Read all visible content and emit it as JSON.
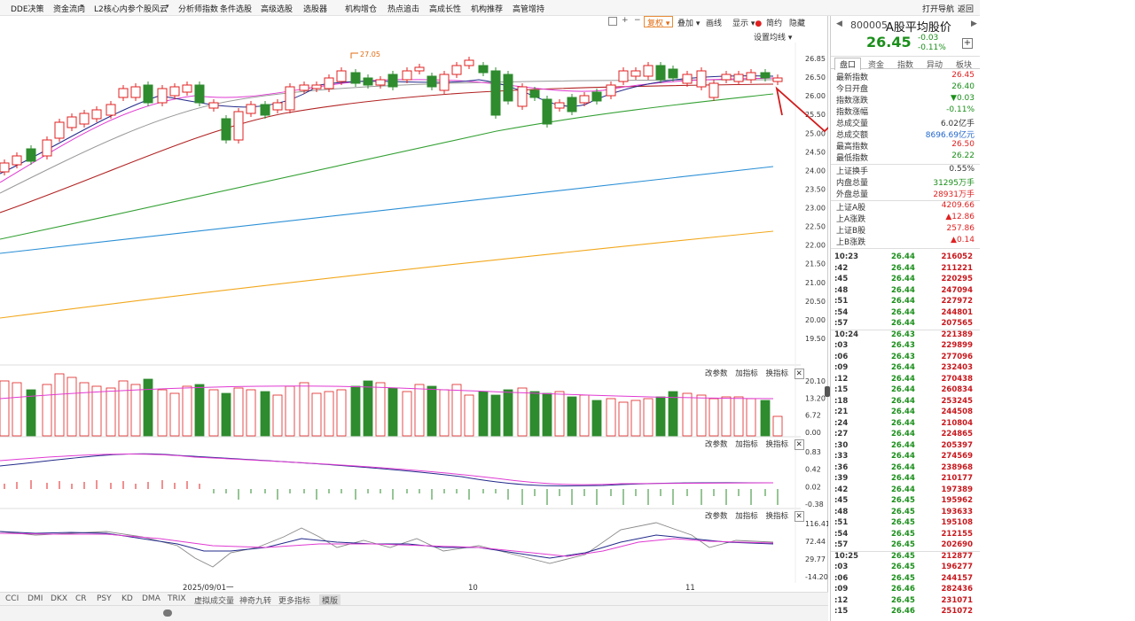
{
  "menu": [
    "DDE决策",
    "资金流向",
    "L2核心内参",
    "个股风云",
    "分析师指数",
    "条件选股",
    "高级选股",
    "选股器",
    "机构增仓",
    "热点追击",
    "高成长性",
    "机构推荐",
    "高管增持"
  ],
  "menu_right": [
    "打开导航",
    "返回"
  ],
  "toolbar": {
    "fuquan": "复权",
    "overlay": "叠加",
    "draw": "画线",
    "show": "显示",
    "simple": "简约",
    "hide": "隐藏"
  },
  "ma_setting": "设置均线",
  "price_axis": [
    "26.85",
    "26.50",
    "26.00",
    "25.50",
    "25.00",
    "24.50",
    "24.00",
    "23.50",
    "23.00",
    "22.50",
    "22.00",
    "21.50",
    "21.00",
    "20.50",
    "20.00",
    "19.50"
  ],
  "peak_label": "27.05",
  "vol_axis": [
    "20.10",
    "13.20",
    "6.72",
    "0.00"
  ],
  "macd_axis": [
    "0.83",
    "0.42",
    "0.02",
    "-0.38"
  ],
  "kdj_axis": [
    "116.41",
    "72.44",
    "29.77",
    "-14.20"
  ],
  "panel_buttons": {
    "change": "改参数",
    "add": "加指标",
    "swap": "换指标"
  },
  "x_labels": [
    "2025/09/01一",
    "10",
    "11"
  ],
  "bottom_tabs": [
    "CCI",
    "DMI",
    "DKX",
    "CR",
    "PSY",
    "KD",
    "DMA",
    "TRIX",
    "虚拟成交量",
    "神奇九转",
    "更多指标",
    "模版"
  ],
  "quote": {
    "code": "800005",
    "name": "A股平均股价",
    "price": "26.45",
    "change": "-0.03",
    "pct": "-0.11%",
    "tabs": [
      "盘口",
      "资金",
      "指数",
      "异动",
      "板块"
    ],
    "rows": [
      {
        "k": "最新指数",
        "v": "26.45",
        "c": "red"
      },
      {
        "k": "今日开盘",
        "v": "26.40",
        "c": "green"
      },
      {
        "k": "指数涨跌",
        "v": "▼0.03",
        "c": "green"
      },
      {
        "k": "指数涨幅",
        "v": "-0.11%",
        "c": "green"
      },
      {
        "k": "总成交量",
        "v": "6.02亿手",
        "c": "dark"
      },
      {
        "k": "总成交额",
        "v": "8696.69亿元",
        "c": "blue"
      },
      {
        "k": "最高指数",
        "v": "26.50",
        "c": "red"
      },
      {
        "k": "最低指数",
        "v": "26.22",
        "c": "green"
      }
    ],
    "rows2": [
      {
        "k": "上证换手",
        "v": "0.55%",
        "c": "dark"
      },
      {
        "k": "内盘总量",
        "v": "31295万手",
        "c": "green"
      },
      {
        "k": "外盘总量",
        "v": "28931万手",
        "c": "red"
      }
    ],
    "rows3": [
      {
        "k": "上证A股",
        "v": "4209.66",
        "c": "red"
      },
      {
        "k": "上A涨跌",
        "v": "▲12.86",
        "c": "red"
      },
      {
        "k": "上证B股",
        "v": "257.86",
        "c": "red"
      },
      {
        "k": "上B涨跌",
        "v": "▲0.14",
        "c": "red"
      }
    ]
  },
  "ticks": [
    [
      "10:23",
      "26.44",
      "216052"
    ],
    [
      ":42",
      "26.44",
      "211221"
    ],
    [
      ":45",
      "26.44",
      "220295"
    ],
    [
      ":48",
      "26.44",
      "247094"
    ],
    [
      ":51",
      "26.44",
      "227972"
    ],
    [
      ":54",
      "26.44",
      "244801"
    ],
    [
      ":57",
      "26.44",
      "207565"
    ],
    [
      "10:24",
      "26.43",
      "221389"
    ],
    [
      ":03",
      "26.43",
      "229899"
    ],
    [
      ":06",
      "26.43",
      "277096"
    ],
    [
      ":09",
      "26.44",
      "232403"
    ],
    [
      ":12",
      "26.44",
      "270438"
    ],
    [
      ":15",
      "26.44",
      "260834"
    ],
    [
      ":18",
      "26.44",
      "253245"
    ],
    [
      ":21",
      "26.44",
      "244508"
    ],
    [
      ":24",
      "26.44",
      "210804"
    ],
    [
      ":27",
      "26.44",
      "224865"
    ],
    [
      ":30",
      "26.44",
      "205397"
    ],
    [
      ":33",
      "26.44",
      "274569"
    ],
    [
      ":36",
      "26.44",
      "238968"
    ],
    [
      ":39",
      "26.44",
      "210177"
    ],
    [
      ":42",
      "26.44",
      "197389"
    ],
    [
      ":45",
      "26.45",
      "195962"
    ],
    [
      ":48",
      "26.45",
      "193633"
    ],
    [
      ":51",
      "26.45",
      "195108"
    ],
    [
      ":54",
      "26.45",
      "212155"
    ],
    [
      ":57",
      "26.45",
      "202690"
    ],
    [
      "10:25",
      "26.45",
      "212877"
    ],
    [
      ":03",
      "26.45",
      "196277"
    ],
    [
      ":06",
      "26.45",
      "244157"
    ],
    [
      ":09",
      "26.46",
      "282436"
    ],
    [
      ":12",
      "26.45",
      "231071"
    ],
    [
      ":15",
      "26.46",
      "251072"
    ]
  ]
}
